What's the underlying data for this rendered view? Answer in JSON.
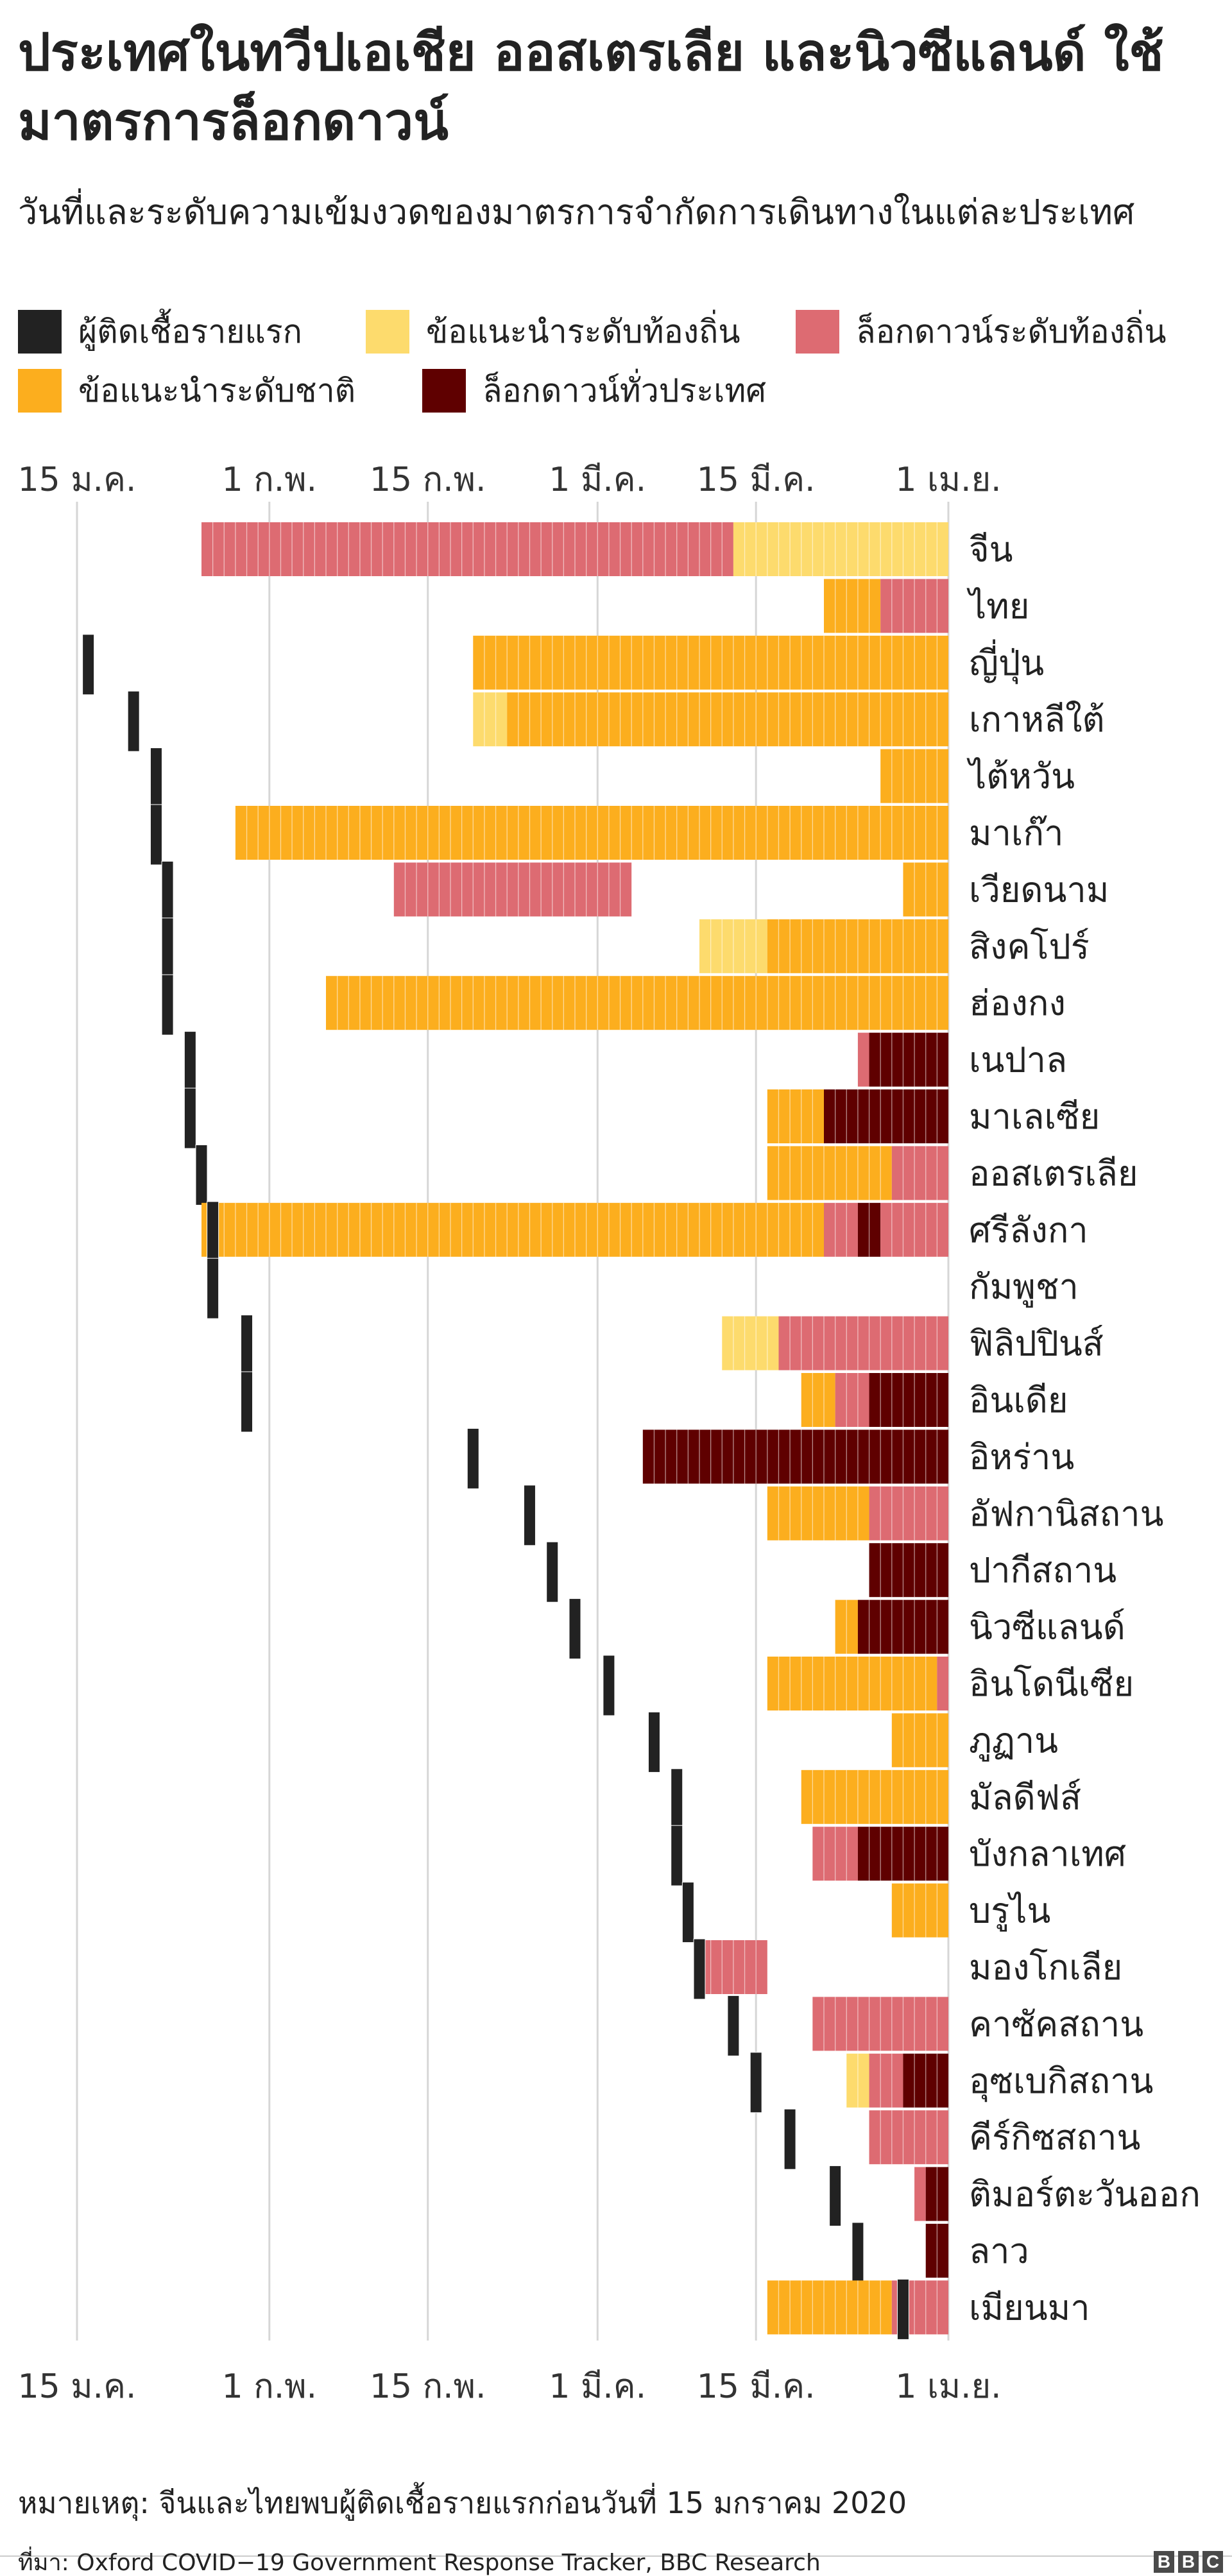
{
  "title": "ประเทศในทวีปเอเชีย ออสเตรเลีย และนิวซีแลนด์ ใช้มาตรการล็อกดาวน์",
  "subtitle": "วันที่และระดับความเข้มงวดของมาตรการจำกัดการเดินทางในแต่ละประเทศ",
  "legend": {
    "first_case": "ผู้ติดเชื้อรายแรก",
    "local_advice": "ข้อแนะนำระดับท้องถิ่น",
    "local_lockdown": "ล็อกดาวน์ระดับท้องถิ่น",
    "national_advice": "ข้อแนะนำระดับชาติ",
    "national_lockdown": "ล็อกดาวน์ทั่วประเทศ"
  },
  "colors": {
    "first_case": "#222222",
    "local_advice": "#fddb6d",
    "local_lockdown": "#dd6b72",
    "national_advice": "#fcae1e",
    "national_lockdown": "#5f0000",
    "grid": "#d6d6d6"
  },
  "note": "หมายเหตุ: จีนและไทยพบผู้ติดเชื้อรายแรกก่อนวันที่ 15 มกราคม 2020",
  "source": "ที่มา: Oxford COVID−19 Government Response Tracker, BBC Research",
  "chart_data": {
    "type": "timeline",
    "x_type": "date",
    "x_range": [
      "2020-01-15",
      "2020-04-01"
    ],
    "x_ticks": [
      {
        "date": "2020-01-15",
        "label": "15 ม.ค."
      },
      {
        "date": "2020-02-01",
        "label": "1 ก.พ."
      },
      {
        "date": "2020-02-15",
        "label": "15 ก.พ."
      },
      {
        "date": "2020-03-01",
        "label": "1 มี.ค."
      },
      {
        "date": "2020-03-15",
        "label": "15 มี.ค."
      },
      {
        "date": "2020-04-01",
        "label": "1 เม.ย."
      }
    ],
    "grid": true,
    "legend_position": "top",
    "rows": [
      {
        "country": "จีน",
        "first_case": null,
        "segments": [
          {
            "level": "local_lockdown",
            "start": "2020-01-26",
            "end": "2020-03-13"
          },
          {
            "level": "local_advice",
            "start": "2020-03-13",
            "end": "2020-04-01"
          }
        ]
      },
      {
        "country": "ไทย",
        "first_case": null,
        "segments": [
          {
            "level": "national_advice",
            "start": "2020-03-21",
            "end": "2020-03-26"
          },
          {
            "level": "local_lockdown",
            "start": "2020-03-26",
            "end": "2020-04-01"
          }
        ]
      },
      {
        "country": "ญี่ปุ่น",
        "first_case": "2020-01-16",
        "segments": [
          {
            "level": "national_advice",
            "start": "2020-02-19",
            "end": "2020-04-01"
          }
        ]
      },
      {
        "country": "เกาหลีใต้",
        "first_case": "2020-01-20",
        "segments": [
          {
            "level": "local_advice",
            "start": "2020-02-19",
            "end": "2020-02-22"
          },
          {
            "level": "national_advice",
            "start": "2020-02-22",
            "end": "2020-04-01"
          }
        ]
      },
      {
        "country": "ไต้หวัน",
        "first_case": "2020-01-22",
        "segments": [
          {
            "level": "national_advice",
            "start": "2020-03-26",
            "end": "2020-04-01"
          }
        ]
      },
      {
        "country": "มาเก๊า",
        "first_case": "2020-01-22",
        "segments": [
          {
            "level": "national_advice",
            "start": "2020-01-29",
            "end": "2020-04-01"
          }
        ]
      },
      {
        "country": "เวียดนาม",
        "first_case": "2020-01-23",
        "segments": [
          {
            "level": "local_lockdown",
            "start": "2020-02-12",
            "end": "2020-03-04"
          },
          {
            "level": "national_advice",
            "start": "2020-03-28",
            "end": "2020-04-01"
          }
        ]
      },
      {
        "country": "สิงคโปร์",
        "first_case": "2020-01-23",
        "segments": [
          {
            "level": "local_advice",
            "start": "2020-03-10",
            "end": "2020-03-16"
          },
          {
            "level": "national_advice",
            "start": "2020-03-16",
            "end": "2020-04-01"
          }
        ]
      },
      {
        "country": "ฮ่องกง",
        "first_case": "2020-01-23",
        "segments": [
          {
            "level": "national_advice",
            "start": "2020-02-06",
            "end": "2020-04-01"
          }
        ]
      },
      {
        "country": "เนปาล",
        "first_case": "2020-01-25",
        "segments": [
          {
            "level": "local_lockdown",
            "start": "2020-03-24",
            "end": "2020-03-25"
          },
          {
            "level": "national_lockdown",
            "start": "2020-03-25",
            "end": "2020-04-01"
          }
        ]
      },
      {
        "country": "มาเลเซีย",
        "first_case": "2020-01-25",
        "segments": [
          {
            "level": "national_advice",
            "start": "2020-03-16",
            "end": "2020-03-21"
          },
          {
            "level": "national_lockdown",
            "start": "2020-03-21",
            "end": "2020-04-01"
          }
        ]
      },
      {
        "country": "ออสเตรเลีย",
        "first_case": "2020-01-26",
        "segments": [
          {
            "level": "national_advice",
            "start": "2020-03-16",
            "end": "2020-03-27"
          },
          {
            "level": "local_lockdown",
            "start": "2020-03-27",
            "end": "2020-04-01"
          }
        ]
      },
      {
        "country": "ศรีลังกา",
        "first_case": "2020-01-27",
        "segments": [
          {
            "level": "national_advice",
            "start": "2020-01-26",
            "end": "2020-03-21"
          },
          {
            "level": "local_lockdown",
            "start": "2020-03-21",
            "end": "2020-03-24"
          },
          {
            "level": "national_lockdown",
            "start": "2020-03-24",
            "end": "2020-03-26"
          },
          {
            "level": "local_lockdown",
            "start": "2020-03-26",
            "end": "2020-04-01"
          }
        ]
      },
      {
        "country": "กัมพูชา",
        "first_case": "2020-01-27",
        "segments": []
      },
      {
        "country": "ฟิลิปปินส์",
        "first_case": "2020-01-30",
        "segments": [
          {
            "level": "local_advice",
            "start": "2020-03-12",
            "end": "2020-03-17"
          },
          {
            "level": "local_lockdown",
            "start": "2020-03-17",
            "end": "2020-04-01"
          }
        ]
      },
      {
        "country": "อินเดีย",
        "first_case": "2020-01-30",
        "segments": [
          {
            "level": "national_advice",
            "start": "2020-03-19",
            "end": "2020-03-22"
          },
          {
            "level": "local_lockdown",
            "start": "2020-03-22",
            "end": "2020-03-25"
          },
          {
            "level": "national_lockdown",
            "start": "2020-03-25",
            "end": "2020-04-01"
          }
        ]
      },
      {
        "country": "อิหร่าน",
        "first_case": "2020-02-19",
        "segments": [
          {
            "level": "national_lockdown",
            "start": "2020-03-05",
            "end": "2020-04-01"
          }
        ]
      },
      {
        "country": "อัฟกานิสถาน",
        "first_case": "2020-02-24",
        "segments": [
          {
            "level": "national_advice",
            "start": "2020-03-16",
            "end": "2020-03-25"
          },
          {
            "level": "local_lockdown",
            "start": "2020-03-25",
            "end": "2020-04-01"
          }
        ]
      },
      {
        "country": "ปากีสถาน",
        "first_case": "2020-02-26",
        "segments": [
          {
            "level": "national_lockdown",
            "start": "2020-03-25",
            "end": "2020-04-01"
          }
        ]
      },
      {
        "country": "นิวซีแลนด์",
        "first_case": "2020-02-28",
        "segments": [
          {
            "level": "national_advice",
            "start": "2020-03-22",
            "end": "2020-03-24"
          },
          {
            "level": "national_lockdown",
            "start": "2020-03-24",
            "end": "2020-04-01"
          }
        ]
      },
      {
        "country": "อินโดนีเซีย",
        "first_case": "2020-03-02",
        "segments": [
          {
            "level": "national_advice",
            "start": "2020-03-16",
            "end": "2020-03-31"
          },
          {
            "level": "local_lockdown",
            "start": "2020-03-31",
            "end": "2020-04-01"
          }
        ]
      },
      {
        "country": "ภูฏาน",
        "first_case": "2020-03-06",
        "segments": [
          {
            "level": "national_advice",
            "start": "2020-03-27",
            "end": "2020-04-01"
          }
        ]
      },
      {
        "country": "มัลดีฟส์",
        "first_case": "2020-03-08",
        "segments": [
          {
            "level": "national_advice",
            "start": "2020-03-19",
            "end": "2020-04-01"
          }
        ]
      },
      {
        "country": "บังกลาเทศ",
        "first_case": "2020-03-08",
        "segments": [
          {
            "level": "local_lockdown",
            "start": "2020-03-20",
            "end": "2020-03-24"
          },
          {
            "level": "national_lockdown",
            "start": "2020-03-24",
            "end": "2020-04-01"
          }
        ]
      },
      {
        "country": "บรูไน",
        "first_case": "2020-03-09",
        "segments": [
          {
            "level": "national_advice",
            "start": "2020-03-27",
            "end": "2020-04-01"
          }
        ]
      },
      {
        "country": "มองโกเลีย",
        "first_case": "2020-03-10",
        "segments": [
          {
            "level": "local_lockdown",
            "start": "2020-03-10",
            "end": "2020-03-16"
          }
        ]
      },
      {
        "country": "คาซัคสถาน",
        "first_case": "2020-03-13",
        "segments": [
          {
            "level": "local_lockdown",
            "start": "2020-03-20",
            "end": "2020-04-01"
          }
        ]
      },
      {
        "country": "อุซเบกิสถาน",
        "first_case": "2020-03-15",
        "segments": [
          {
            "level": "local_advice",
            "start": "2020-03-23",
            "end": "2020-03-25"
          },
          {
            "level": "local_lockdown",
            "start": "2020-03-25",
            "end": "2020-03-28"
          },
          {
            "level": "national_lockdown",
            "start": "2020-03-28",
            "end": "2020-04-01"
          }
        ]
      },
      {
        "country": "คีร์กิซสถาน",
        "first_case": "2020-03-18",
        "segments": [
          {
            "level": "local_lockdown",
            "start": "2020-03-25",
            "end": "2020-04-01"
          }
        ]
      },
      {
        "country": "ติมอร์ตะวันออก",
        "first_case": "2020-03-22",
        "segments": [
          {
            "level": "local_lockdown",
            "start": "2020-03-29",
            "end": "2020-03-30"
          },
          {
            "level": "national_lockdown",
            "start": "2020-03-30",
            "end": "2020-04-01"
          }
        ]
      },
      {
        "country": "ลาว",
        "first_case": "2020-03-24",
        "segments": [
          {
            "level": "national_lockdown",
            "start": "2020-03-30",
            "end": "2020-04-01"
          }
        ]
      },
      {
        "country": "เมียนมา",
        "first_case": "2020-03-28",
        "segments": [
          {
            "level": "national_advice",
            "start": "2020-03-16",
            "end": "2020-03-27"
          },
          {
            "level": "local_lockdown",
            "start": "2020-03-27",
            "end": "2020-04-01"
          }
        ]
      }
    ]
  }
}
